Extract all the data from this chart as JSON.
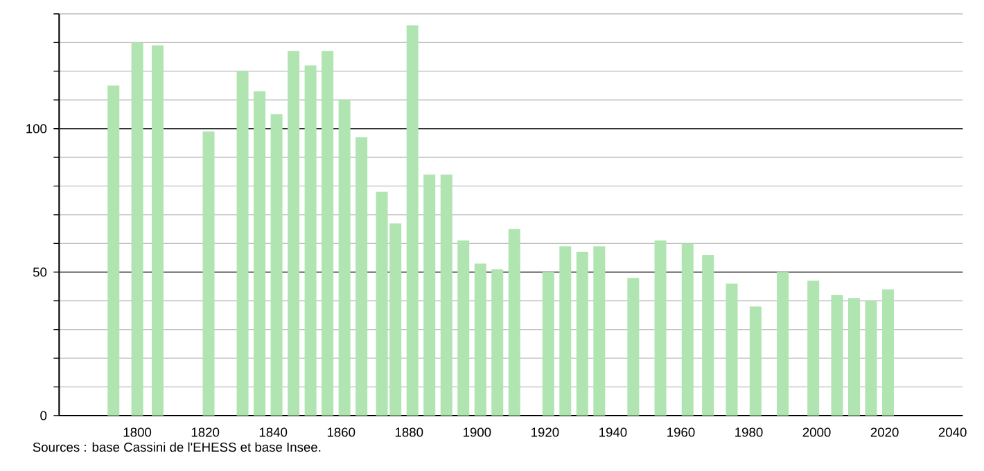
{
  "chart_data": {
    "type": "bar",
    "color": "#b0e4b0",
    "x": [
      1793,
      1800,
      1806,
      1821,
      1831,
      1836,
      1841,
      1846,
      1851,
      1856,
      1861,
      1866,
      1872,
      1876,
      1881,
      1886,
      1891,
      1896,
      1901,
      1906,
      1911,
      1921,
      1926,
      1931,
      1936,
      1946,
      1954,
      1962,
      1968,
      1975,
      1982,
      1990,
      1999,
      2006,
      2011,
      2016,
      2021
    ],
    "values": [
      115,
      130,
      129,
      99,
      120,
      113,
      105,
      127,
      122,
      127,
      110,
      97,
      78,
      67,
      136,
      84,
      84,
      61,
      53,
      51,
      65,
      50,
      59,
      57,
      59,
      48,
      61,
      60,
      56,
      46,
      38,
      50,
      47,
      42,
      41,
      40,
      44
    ],
    "xlim": [
      1777,
      2043
    ],
    "xticks": [
      1800,
      1820,
      1840,
      1860,
      1880,
      1900,
      1920,
      1940,
      1960,
      1980,
      2000,
      2020,
      2040
    ],
    "ylim": [
      0,
      140
    ],
    "yticks": [
      0,
      {
        "value": 10,
        "label": null
      },
      {
        "value": 20,
        "label": null
      },
      {
        "value": 30,
        "label": null
      },
      {
        "value": 40,
        "label": null
      },
      50,
      {
        "value": 60,
        "label": null
      },
      {
        "value": 70,
        "label": null
      },
      {
        "value": 80,
        "label": null
      },
      {
        "value": 90,
        "label": null
      },
      100,
      {
        "value": 110,
        "label": null
      },
      {
        "value": 120,
        "label": null
      },
      {
        "value": 130,
        "label": null
      },
      {
        "value": 140,
        "label": null
      }
    ],
    "grid": "y",
    "annotations": [
      "Sources : base Cassini de l'EHESS et base Insee."
    ]
  }
}
